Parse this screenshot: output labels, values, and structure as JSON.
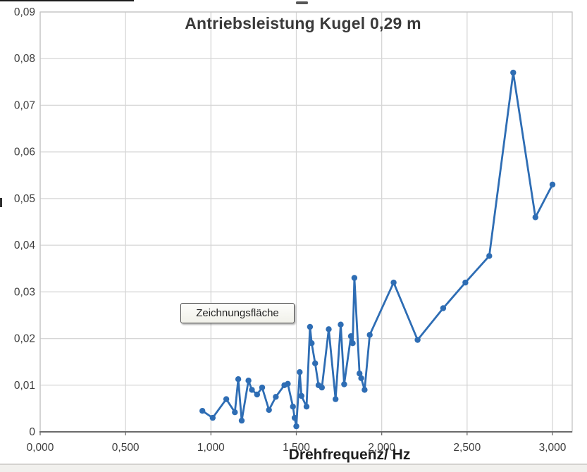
{
  "chart_data": {
    "type": "line",
    "title": "Antriebsleistung Kugel 0,29 m",
    "xlabel": "Drehfrequenz/ Hz",
    "ylabel": "",
    "x_tick_labels": [
      "0,000",
      "0,500",
      "1,000",
      "1,500",
      "2,000",
      "2,500",
      "3,000"
    ],
    "x_tick_values": [
      0,
      0.5,
      1.0,
      1.5,
      2.0,
      2.5,
      3.0
    ],
    "y_tick_labels": [
      "0,09",
      "0,08",
      "0,07",
      "0,06",
      "0,05",
      "0,04",
      "0,03",
      "0,02",
      "0,01",
      "0"
    ],
    "y_tick_values": [
      0.09,
      0.08,
      0.07,
      0.06,
      0.05,
      0.04,
      0.03,
      0.02,
      0.01,
      0
    ],
    "xlim": [
      0,
      3.12
    ],
    "ylim": [
      0,
      0.09
    ],
    "grid": true,
    "legend": "none",
    "series": [
      {
        "marker": "circle",
        "color": "#2e6db4",
        "points": [
          [
            0.95,
            0.0045
          ],
          [
            1.01,
            0.003
          ],
          [
            1.09,
            0.007
          ],
          [
            1.14,
            0.0042
          ],
          [
            1.16,
            0.0113
          ],
          [
            1.18,
            0.0024
          ],
          [
            1.22,
            0.011
          ],
          [
            1.24,
            0.009
          ],
          [
            1.27,
            0.008
          ],
          [
            1.3,
            0.0095
          ],
          [
            1.34,
            0.0047
          ],
          [
            1.38,
            0.0075
          ],
          [
            1.43,
            0.01
          ],
          [
            1.45,
            0.0103
          ],
          [
            1.48,
            0.0054
          ],
          [
            1.49,
            0.003
          ],
          [
            1.5,
            0.0012
          ],
          [
            1.52,
            0.0128
          ],
          [
            1.53,
            0.0077
          ],
          [
            1.56,
            0.0054
          ],
          [
            1.58,
            0.0225
          ],
          [
            1.59,
            0.019
          ],
          [
            1.61,
            0.0147
          ],
          [
            1.63,
            0.01
          ],
          [
            1.65,
            0.0095
          ],
          [
            1.69,
            0.022
          ],
          [
            1.73,
            0.007
          ],
          [
            1.76,
            0.023
          ],
          [
            1.78,
            0.0102
          ],
          [
            1.82,
            0.0205
          ],
          [
            1.83,
            0.019
          ],
          [
            1.84,
            0.033
          ],
          [
            1.87,
            0.0125
          ],
          [
            1.88,
            0.0115
          ],
          [
            1.9,
            0.009
          ],
          [
            1.93,
            0.0208
          ],
          [
            2.07,
            0.032
          ],
          [
            2.21,
            0.0197
          ],
          [
            2.36,
            0.0265
          ],
          [
            2.49,
            0.032
          ],
          [
            2.63,
            0.0377
          ],
          [
            2.77,
            0.077
          ],
          [
            2.9,
            0.046
          ],
          [
            3.0,
            0.053
          ]
        ]
      }
    ]
  },
  "overlays": {
    "tooltip_label": "Zeichnungsfläche"
  },
  "colors": {
    "series": "#2e6db4",
    "grid": "#d6d6d6",
    "plot_border": "#c4c4c4",
    "axis_line": "#6b6b6b",
    "title_text": "#3a3a3a",
    "tick_text": "#3d3d3d"
  }
}
